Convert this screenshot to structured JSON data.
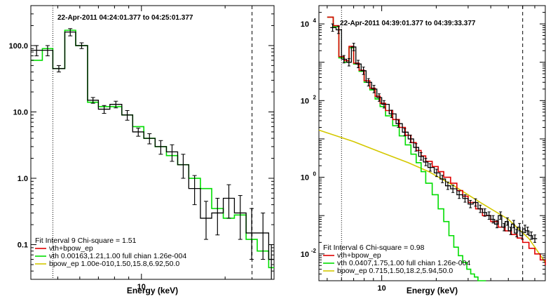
{
  "chart_data": [
    {
      "type": "line",
      "panel": "left",
      "title": "22-Apr-2011 04:24:01.377 to 04:25:01.377",
      "xlabel": "Energy (keV)",
      "ylabel": "",
      "xscale": "log",
      "yscale": "log",
      "xlim": [
        4,
        30
      ],
      "ylim": [
        0.03,
        400
      ],
      "x_ticks": [
        {
          "value": 10,
          "label": "10"
        }
      ],
      "y_ticks": [
        {
          "value": 100,
          "label": "100.0"
        },
        {
          "value": 10,
          "label": "10.0"
        },
        {
          "value": 1,
          "label": "1.0"
        },
        {
          "value": 0.1,
          "label": "0.1"
        }
      ],
      "vlines": [
        {
          "x": 4.8,
          "style": "dotted"
        },
        {
          "x": 25,
          "style": "dashed"
        }
      ],
      "fit_label": "Fit Interval 9   Chi-square = 1.51",
      "legend": [
        {
          "text": "vth+bpow_ep",
          "color": "#e00000"
        },
        {
          "text": "vth 0.00163,1.21,1.00   full chian 1.26e-004",
          "color": "#00dd00"
        },
        {
          "text": "bpow_ep 1.00e-010,1.50,15.8,6.92,50.0",
          "color": "#d4c800"
        }
      ],
      "series": [
        {
          "name": "data",
          "style": "step",
          "color": "#000000",
          "edges": [
            4.0,
            4.4,
            4.8,
            5.3,
            5.8,
            6.4,
            7.0,
            7.7,
            8.5,
            9.3,
            10.2,
            11.2,
            12.3,
            13.5,
            14.8,
            16.3,
            17.9,
            19.7,
            21.6,
            23.8,
            26.1,
            28.7,
            30.0
          ],
          "values": [
            85,
            85,
            45,
            160,
            100,
            15,
            11,
            13,
            9,
            5,
            4,
            3,
            2.5,
            1.6,
            0.7,
            0.25,
            0.3,
            0.5,
            0.3,
            0.15,
            0.15,
            0.06
          ],
          "errors_low": [
            70,
            70,
            40,
            140,
            90,
            13.5,
            9.5,
            11.5,
            7.5,
            4.3,
            3.3,
            2.3,
            1.8,
            1.0,
            0.4,
            0.12,
            0.14,
            0.25,
            0.12,
            0.06,
            0.06,
            0.03
          ],
          "errors_high": [
            100,
            100,
            50,
            180,
            110,
            16.5,
            12.5,
            14.5,
            10.5,
            5.7,
            4.7,
            3.7,
            3.2,
            2.3,
            1.1,
            0.45,
            0.5,
            0.8,
            0.55,
            0.35,
            0.3,
            0.1
          ]
        },
        {
          "name": "model (vth+bpow_ep)",
          "style": "step",
          "color": "#00dd00",
          "edges": [
            4.0,
            4.4,
            4.8,
            5.3,
            5.8,
            6.4,
            7.0,
            7.7,
            8.5,
            9.3,
            10.2,
            11.2,
            12.3,
            13.5,
            14.8,
            16.3,
            17.9,
            19.7,
            21.6,
            23.8,
            26.1,
            28.7,
            30.0
          ],
          "values": [
            60,
            90,
            45,
            170,
            100,
            14,
            12,
            12,
            9,
            6,
            4,
            3,
            2.2,
            1.6,
            1.0,
            0.7,
            0.35,
            0.25,
            0.28,
            0.12,
            0.08,
            0.045
          ]
        }
      ]
    },
    {
      "type": "line",
      "panel": "right",
      "title": "22-Apr-2011 04:39:01.377 to 04:39:33.377",
      "xlabel": "Energy (keV)",
      "ylabel": "",
      "xscale": "log",
      "yscale": "log",
      "xlim": [
        4.5,
        80
      ],
      "ylim": [
        0.002,
        30000
      ],
      "x_ticks": [
        {
          "value": 10,
          "label": "10"
        }
      ],
      "y_ticks": [
        {
          "value": 10000,
          "label": "10",
          "exp": "4"
        },
        {
          "value": 100,
          "label": "10",
          "exp": "2"
        },
        {
          "value": 1,
          "label": "10",
          "exp": "0"
        },
        {
          "value": 0.01,
          "label": "10",
          "exp": "-2"
        }
      ],
      "vlines": [
        {
          "x": 6,
          "style": "dotted"
        },
        {
          "x": 60,
          "style": "dashed"
        }
      ],
      "fit_label": "Fit Interval 6   Chi-square = 0.98",
      "legend": [
        {
          "text": "vth+bpow_ep",
          "color": "#e00000"
        },
        {
          "text": "vth 0.0407,1.75,1.00   full chian 1.26e-004",
          "color": "#00dd00"
        },
        {
          "text": "bpow_ep 0.715,1.50,18.2,5.94,50.0",
          "color": "#d4c800"
        }
      ],
      "series": [
        {
          "name": "data",
          "style": "step",
          "color": "#000000",
          "x": [
            5.2,
            5.6,
            6.0,
            6.4,
            6.8,
            7.2,
            7.7,
            8.2,
            8.8,
            9.4,
            10.0,
            11,
            12,
            13,
            14,
            15,
            16,
            17,
            18,
            19.5,
            21,
            22.5,
            24,
            26,
            28,
            30,
            32,
            34,
            36,
            38,
            40,
            42,
            44,
            46,
            48,
            50,
            52,
            54,
            56,
            58,
            60,
            62,
            65,
            68
          ],
          "values": [
            8000,
            7000,
            1200,
            1000,
            2500,
            900,
            600,
            300,
            200,
            120,
            80,
            45,
            25,
            15,
            10,
            6,
            3.5,
            2.5,
            1.8,
            1.3,
            0.9,
            0.6,
            0.5,
            0.35,
            0.28,
            0.2,
            0.22,
            0.15,
            0.12,
            0.1,
            0.08,
            0.06,
            0.1,
            0.05,
            0.07,
            0.04,
            0.06,
            0.035,
            0.05,
            0.03,
            0.045,
            0.04,
            0.03,
            0.025
          ]
        },
        {
          "name": "model (vth+bpow_ep)",
          "style": "step",
          "color": "#e00000",
          "x": [
            5.0,
            5.4,
            5.8,
            6.2,
            6.6,
            7.0,
            7.5,
            8.0,
            8.6,
            9.2,
            9.8,
            10.5,
            11.5,
            12.5,
            13.5,
            14.5,
            15.5,
            16.5,
            17.5,
            19,
            20.5,
            22,
            24,
            26,
            28,
            30,
            33,
            36,
            40,
            44,
            48,
            52,
            56,
            60,
            65,
            70,
            75,
            80
          ],
          "values": [
            15000,
            9000,
            1400,
            1100,
            2600,
            950,
            620,
            330,
            210,
            130,
            85,
            55,
            32,
            20,
            12.5,
            8,
            5,
            3.6,
            2.6,
            1.9,
            1.4,
            1.0,
            0.7,
            0.45,
            0.32,
            0.22,
            0.15,
            0.1,
            0.07,
            0.05,
            0.04,
            0.032,
            0.026,
            0.02,
            0.014,
            0.01,
            0.007,
            0.005
          ]
        },
        {
          "name": "vth",
          "style": "step",
          "color": "#00dd00",
          "x": [
            5.0,
            5.4,
            5.8,
            6.2,
            6.6,
            7.0,
            7.5,
            8.0,
            8.6,
            9.2,
            9.8,
            10.5,
            11.5,
            12.5,
            13.5,
            14.5,
            15.5,
            16.5,
            17.5,
            19,
            20.5,
            22,
            23.5,
            25,
            26.5,
            28,
            29.5,
            31,
            32.5,
            34,
            35.5
          ],
          "values": [
            15000,
            8500,
            1300,
            1000,
            2400,
            900,
            580,
            300,
            190,
            110,
            70,
            40,
            22,
            12,
            7,
            4,
            2.4,
            1.4,
            0.7,
            0.35,
            0.15,
            0.07,
            0.03,
            0.015,
            0.009,
            0.006,
            0.004,
            0.003,
            0.0025,
            0.002,
            0.002
          ]
        },
        {
          "name": "bpow_ep",
          "style": "line",
          "color": "#d4c800",
          "x": [
            4.5,
            7,
            10,
            14,
            18.2,
            25,
            35,
            50,
            65,
            80
          ],
          "values": [
            17,
            8.5,
            4.4,
            2.4,
            1.4,
            0.6,
            0.22,
            0.08,
            0.025,
            0.006
          ]
        }
      ]
    }
  ]
}
